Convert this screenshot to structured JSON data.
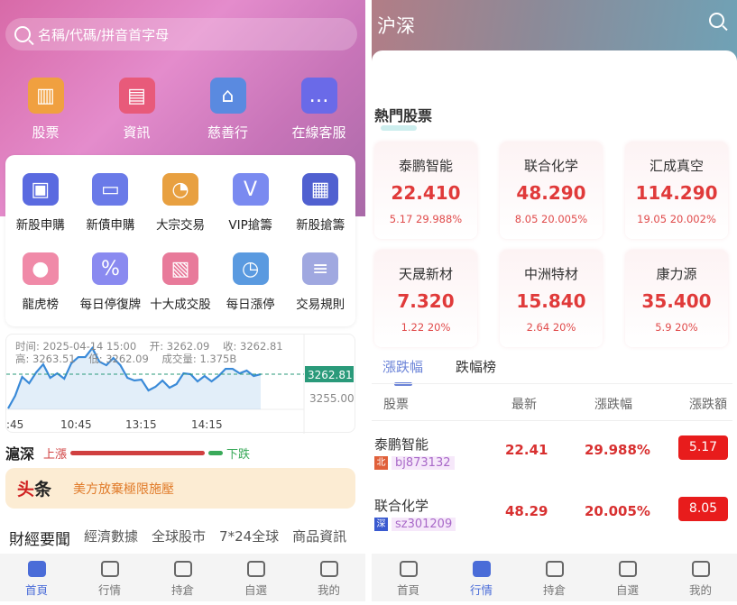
{
  "home": {
    "search_placeholder": "名稱/代碼/拼音首字母",
    "top_items": [
      {
        "label": "股票",
        "icon": "bar-chart-icon",
        "color": "#f0a040"
      },
      {
        "label": "資訊",
        "icon": "presentation-board-icon",
        "color": "#e85a7a"
      },
      {
        "label": "慈善行",
        "icon": "bank-building-icon",
        "color": "#5a8ae0"
      },
      {
        "label": "在線客服",
        "icon": "chat-bubbles-icon",
        "color": "#6a6ae8"
      }
    ],
    "grid_items": [
      {
        "label": "新股申購",
        "icon": "wallet-icon",
        "color": "#5a6ae0"
      },
      {
        "label": "新債申購",
        "icon": "credit-card-icon",
        "color": "#6a7ae8"
      },
      {
        "label": "大宗交易",
        "icon": "pie-chart-icon",
        "color": "#e8a040"
      },
      {
        "label": "VIP搶籌",
        "icon": "vip-card-icon",
        "color": "#7a8af0"
      },
      {
        "label": "新股搶籌",
        "icon": "safe-icon",
        "color": "#5060d0"
      },
      {
        "label": "龍虎榜",
        "icon": "piggy-bank-icon",
        "color": "#f08aa8"
      },
      {
        "label": "每日停復牌",
        "icon": "discount-tag-icon",
        "color": "#8a8af0"
      },
      {
        "label": "十大成交股",
        "icon": "report-chart-icon",
        "color": "#e87a9a"
      },
      {
        "label": "每日漲停",
        "icon": "alarm-clock-icon",
        "color": "#5a9ae0"
      },
      {
        "label": "交易規則",
        "icon": "document-icon",
        "color": "#a0a8e0"
      }
    ],
    "chart": {
      "info_line1": "时间: 2025-04-14 15:00    开: 3262.09    收: 3262.81",
      "info_line2": "高: 3263.51    低: 3262.09    成交量: 1.375B",
      "current_label": "3262.81",
      "y_label": "3255.00",
      "x_labels": [
        ":45",
        "10:45",
        "13:15",
        "14:15"
      ],
      "values": [
        3251.4,
        3255.6,
        3261.9,
        3259.8,
        3263.4,
        3266.1,
        3261.6,
        3263.1,
        3261.3,
        3266.4,
        3268.5,
        3268.5,
        3271.5,
        3267.0,
        3265.8,
        3268.2,
        3265.8,
        3261.6,
        3260.7,
        3261.0,
        3257.4,
        3258.6,
        3260.7,
        3258.3,
        3259.5,
        3263.1,
        3262.8,
        3260.4,
        3262.2,
        3260.4,
        3262.2,
        3264.6,
        3264.6,
        3263.1,
        3264.0,
        3262.2,
        3262.8
      ],
      "line_color": "#3a8ad8",
      "tag_color": "#2a9a7a"
    },
    "market": {
      "title": "滬深",
      "up_label": "上漲",
      "down_label": "下跌",
      "up_ratio": 0.9,
      "up_color": "#d04040",
      "down_color": "#3aaa5a"
    },
    "headline": {
      "logo_a": "头",
      "logo_b": "条",
      "text": "美方放棄極限施壓"
    },
    "news_tabs": [
      "財經要聞",
      "經濟數據",
      "全球股市",
      "7*24全球",
      "商品資訊"
    ],
    "nav": [
      {
        "label": "首頁",
        "icon": "home-icon",
        "active": true
      },
      {
        "label": "行情",
        "icon": "market-chart-icon"
      },
      {
        "label": "持倉",
        "icon": "position-icon"
      },
      {
        "label": "自選",
        "icon": "checkbox-icon"
      },
      {
        "label": "我的",
        "icon": "user-icon"
      }
    ]
  },
  "market_page": {
    "title": "沪深",
    "hot_title": "熱門股票",
    "hot_stocks": [
      {
        "name": "泰鹏智能",
        "price": "22.410",
        "change": "5.17 29.988%"
      },
      {
        "name": "联合化学",
        "price": "48.290",
        "change": "8.05 20.005%"
      },
      {
        "name": "汇成真空",
        "price": "114.290",
        "change": "19.05 20.002%"
      },
      {
        "name": "天晟新材",
        "price": "7.320",
        "change": "1.22 20%"
      },
      {
        "name": "中洲特材",
        "price": "15.840",
        "change": "2.64 20%"
      },
      {
        "name": "康力源",
        "price": "35.400",
        "change": "5.9 20%"
      }
    ],
    "tabs": [
      "漲跌幅",
      "跌幅榜"
    ],
    "columns": [
      "股票",
      "最新",
      "漲跌幅",
      "漲跌額"
    ],
    "rows": [
      {
        "name": "泰鹏智能",
        "market": "北",
        "market_color": "#e0603a",
        "code": "bj873132",
        "price": "22.41",
        "pct": "29.988%",
        "chg": "5.17"
      },
      {
        "name": "联合化学",
        "market": "深",
        "market_color": "#3a5ad0",
        "code": "sz301209",
        "price": "48.29",
        "pct": "20.005%",
        "chg": "8.05"
      }
    ],
    "nav": [
      {
        "label": "首頁",
        "icon": "home-icon"
      },
      {
        "label": "行情",
        "icon": "market-chart-icon",
        "active": true
      },
      {
        "label": "持倉",
        "icon": "position-icon"
      },
      {
        "label": "自選",
        "icon": "checkbox-icon"
      },
      {
        "label": "我的",
        "icon": "user-icon"
      }
    ]
  }
}
